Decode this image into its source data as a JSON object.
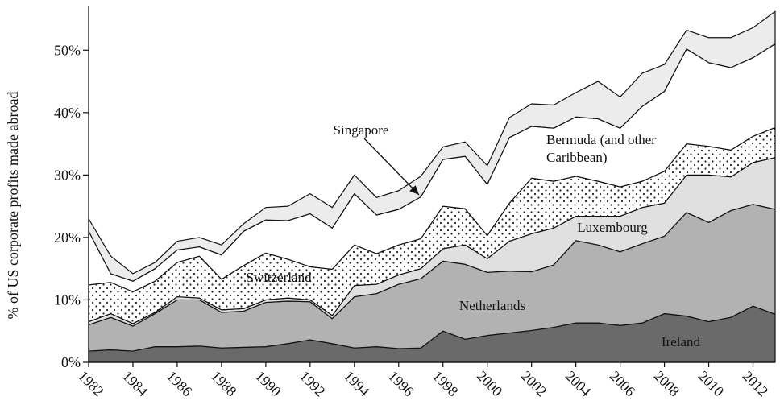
{
  "chart_data": {
    "type": "stacked_area",
    "y_label": "% of US corporate profits made abroad",
    "x": [
      1982,
      1983,
      1984,
      1985,
      1986,
      1987,
      1988,
      1989,
      1990,
      1991,
      1992,
      1993,
      1994,
      1995,
      1996,
      1997,
      1998,
      1999,
      2000,
      2001,
      2002,
      2003,
      2004,
      2005,
      2006,
      2007,
      2008,
      2009,
      2010,
      2011,
      2012,
      2013
    ],
    "xlim": [
      1982,
      2013
    ],
    "xticks": [
      1982,
      1984,
      1986,
      1988,
      1990,
      1992,
      1994,
      1996,
      1998,
      2000,
      2002,
      2004,
      2006,
      2008,
      2010,
      2012
    ],
    "ylim": [
      0,
      57
    ],
    "yticks": [
      {
        "value": 0,
        "label": "0%"
      },
      {
        "value": 10,
        "label": "10%"
      },
      {
        "value": 20,
        "label": "20%"
      },
      {
        "value": 30,
        "label": "30%"
      },
      {
        "value": 40,
        "label": "40%"
      },
      {
        "value": 50,
        "label": "50%"
      }
    ],
    "series": [
      {
        "name": "Ireland",
        "color": "#6a6a6a",
        "values": [
          1.8,
          2.0,
          1.8,
          2.5,
          2.5,
          2.6,
          2.3,
          2.4,
          2.5,
          3.0,
          3.6,
          3.0,
          2.3,
          2.5,
          2.2,
          2.3,
          5.0,
          3.7,
          4.3,
          4.7,
          5.1,
          5.6,
          6.3,
          6.3,
          5.9,
          6.3,
          7.8,
          7.4,
          6.5,
          7.2,
          9.0,
          7.7
        ]
      },
      {
        "name": "Netherlands",
        "color": "#b2b2b2",
        "values": [
          4.2,
          5.2,
          4.0,
          5.3,
          7.5,
          7.4,
          5.7,
          5.8,
          7.1,
          6.8,
          6.1,
          4.0,
          8.2,
          8.5,
          10.3,
          11.1,
          11.2,
          12.0,
          10.1,
          9.9,
          9.4,
          10.0,
          13.2,
          12.5,
          11.8,
          12.7,
          12.4,
          16.6,
          15.9,
          17.1,
          16.3,
          16.8
        ]
      },
      {
        "name": "Luxembourg",
        "color": "#e0e0e0",
        "values": [
          0.5,
          0.6,
          0.4,
          0.2,
          0.5,
          0.3,
          0.4,
          0.4,
          0.4,
          0.5,
          0.3,
          0.5,
          1.8,
          1.5,
          1.5,
          1.6,
          2.0,
          3.1,
          2.2,
          4.8,
          6.1,
          5.9,
          3.9,
          4.6,
          5.7,
          5.8,
          5.3,
          6.0,
          7.6,
          5.4,
          6.7,
          8.3
        ]
      },
      {
        "name": "Switzerland",
        "color": "#ffffff",
        "pattern": "dots",
        "values": [
          5.9,
          5.0,
          5.1,
          5.0,
          5.5,
          6.7,
          4.9,
          6.9,
          7.5,
          6.2,
          5.3,
          7.4,
          6.5,
          4.9,
          4.8,
          4.8,
          6.8,
          5.8,
          3.7,
          6.1,
          8.9,
          7.5,
          6.4,
          5.6,
          4.7,
          4.2,
          5.1,
          5.0,
          4.6,
          4.3,
          4.2,
          4.8
        ]
      },
      {
        "name": "Bermuda (and other Caribbean)",
        "color": "#ffffff",
        "values": [
          8.6,
          1.4,
          1.7,
          2.0,
          2.0,
          1.5,
          3.9,
          5.5,
          5.3,
          6.2,
          8.5,
          6.6,
          8.2,
          6.2,
          5.7,
          6.7,
          7.5,
          8.4,
          8.2,
          10.5,
          8.3,
          8.5,
          9.5,
          10.0,
          9.4,
          12.0,
          12.8,
          15.2,
          13.4,
          13.2,
          12.6,
          13.4
        ]
      },
      {
        "name": "Singapore",
        "color": "#ececec",
        "values": [
          2.0,
          2.8,
          1.2,
          1.0,
          1.4,
          1.5,
          1.6,
          1.2,
          2.0,
          2.3,
          3.2,
          3.3,
          3.0,
          2.8,
          3.0,
          3.3,
          2.0,
          2.3,
          3.0,
          3.2,
          3.6,
          3.7,
          3.9,
          6.0,
          5.0,
          5.3,
          4.3,
          3.0,
          4.0,
          4.8,
          4.8,
          5.2
        ]
      }
    ]
  }
}
